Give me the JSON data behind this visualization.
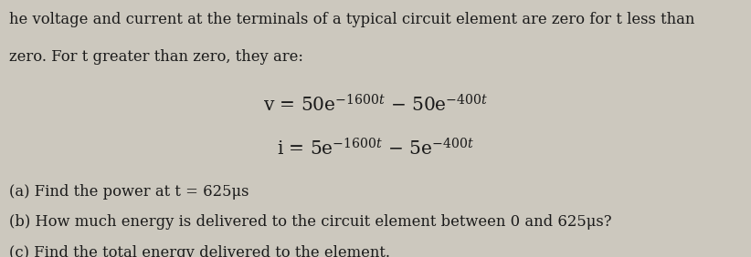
{
  "background_color": "#ccc8be",
  "text_color": "#1a1a1a",
  "fig_width": 8.22,
  "fig_height": 2.82,
  "dpi": 100,
  "line1": "he voltage and current at the terminals of a typical circuit element are zero for t less than",
  "line2": "zero. For t greater than zero, they are:",
  "part_a": "(a) Find the power at t = 625μs",
  "part_b": "(b) How much energy is delivered to the circuit element between 0 and 625μs?",
  "part_c": "(c) Find the total energy delivered to the element.",
  "font_size_body": 11.8,
  "font_size_eq": 14.5,
  "font_family": "DejaVu Serif"
}
